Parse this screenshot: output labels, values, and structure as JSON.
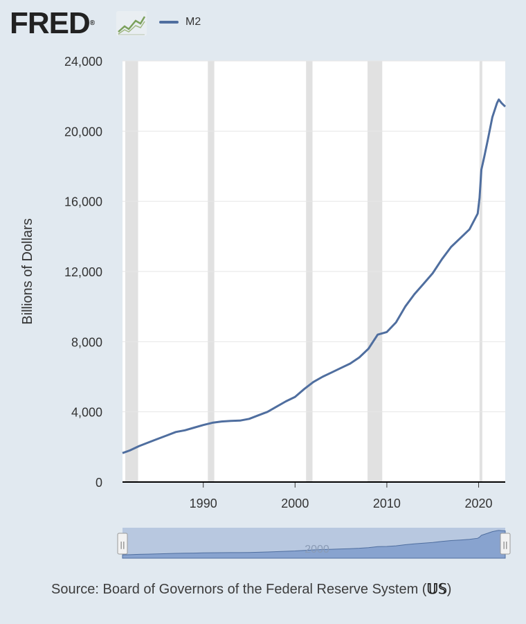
{
  "header": {
    "logo_text": "FRED",
    "logo_registered": "®",
    "logo_icon": "line-chart-icon"
  },
  "legend": {
    "series_name": "M2",
    "color": "#4f6e9f"
  },
  "source": {
    "text": "Source: Board of Governors of the Federal Reserve System (",
    "icon_glyph": "𝕌𝕊",
    "close": ")"
  },
  "navigator": {
    "label": "2000",
    "left_handle_glyph": "||",
    "right_handle_glyph": "||"
  },
  "chart_data": {
    "type": "line",
    "title": "",
    "xlabel": "",
    "ylabel": "Billions of Dollars",
    "xlim": [
      1981.2,
      2022.9
    ],
    "ylim": [
      0,
      24000
    ],
    "yticks": [
      0,
      4000,
      8000,
      12000,
      16000,
      20000,
      24000
    ],
    "ytick_labels": [
      "0",
      "4,000",
      "8,000",
      "12,000",
      "16,000",
      "20,000",
      "24,000"
    ],
    "xticks": [
      1990,
      2000,
      2010,
      2020
    ],
    "xtick_labels": [
      "1990",
      "2000",
      "2010",
      "2020"
    ],
    "grid": true,
    "recessions": [
      [
        1981.5,
        1982.9
      ],
      [
        1990.5,
        1991.2
      ],
      [
        2001.2,
        2001.9
      ],
      [
        2007.9,
        2009.5
      ],
      [
        2020.1,
        2020.4
      ]
    ],
    "series": [
      {
        "name": "M2",
        "color": "#4f6e9f",
        "x": [
          1981.2,
          1982,
          1983,
          1984,
          1985,
          1986,
          1987,
          1988,
          1989,
          1990,
          1991,
          1992,
          1993,
          1994,
          1995,
          1996,
          1997,
          1998,
          1999,
          2000,
          2001,
          2002,
          2003,
          2004,
          2005,
          2006,
          2007,
          2008,
          2009,
          2010,
          2011,
          2012,
          2013,
          2014,
          2015,
          2016,
          2017,
          2018,
          2019,
          2019.9,
          2020.1,
          2020.3,
          2020.6,
          2021,
          2021.5,
          2022,
          2022.2,
          2022.5,
          2022.9
        ],
        "values": [
          1650,
          1800,
          2050,
          2250,
          2450,
          2650,
          2850,
          2950,
          3100,
          3250,
          3380,
          3450,
          3480,
          3500,
          3600,
          3800,
          4000,
          4300,
          4600,
          4850,
          5300,
          5700,
          6000,
          6250,
          6500,
          6750,
          7100,
          7600,
          8400,
          8550,
          9100,
          10000,
          10700,
          11300,
          11900,
          12700,
          13400,
          13900,
          14400,
          15300,
          16200,
          17800,
          18500,
          19500,
          20800,
          21600,
          21800,
          21600,
          21400
        ]
      }
    ]
  }
}
